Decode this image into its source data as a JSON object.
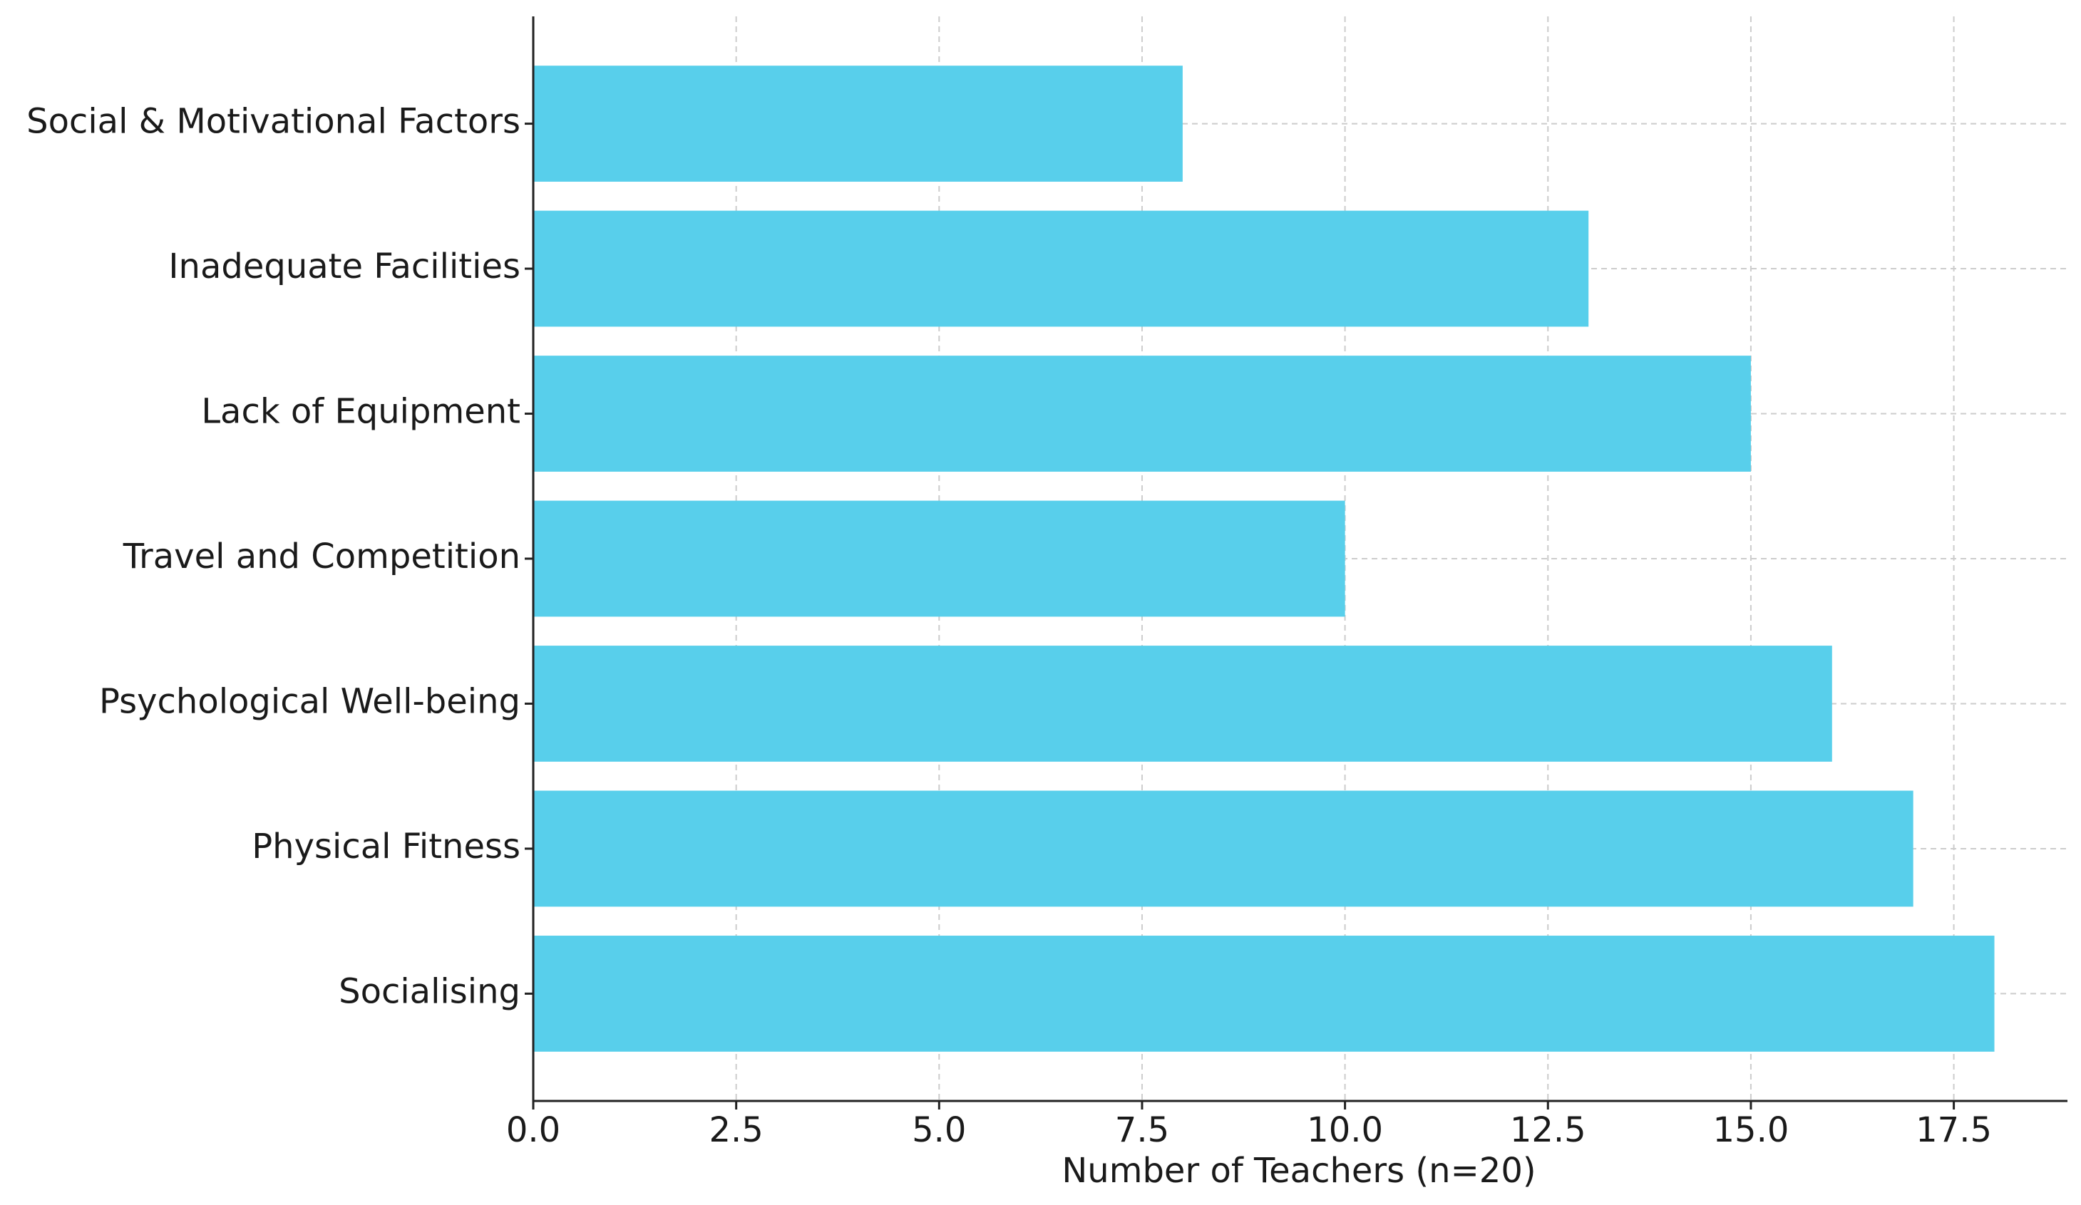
{
  "chart_data": {
    "type": "barh",
    "xlabel": "Number of Teachers (n=20)",
    "categories": [
      "Socialising",
      "Physical Fitness",
      "Psychological Well-being",
      "Travel and Competition",
      "Lack of Equipment",
      "Inadequate Facilities",
      "Social & Motivational Factors"
    ],
    "values": [
      18,
      17,
      16,
      10,
      15,
      13,
      8
    ],
    "color": "#58cfeb",
    "xlim": [
      0,
      18.9
    ],
    "xticks": [
      {
        "value": 0,
        "label": "0.0"
      },
      2.5,
      {
        "value": 5,
        "label": "5.0"
      },
      7.5,
      {
        "value": 10,
        "label": "10.0"
      },
      12.5,
      {
        "value": 15,
        "label": "15.0"
      },
      17.5
    ],
    "grid": true
  }
}
